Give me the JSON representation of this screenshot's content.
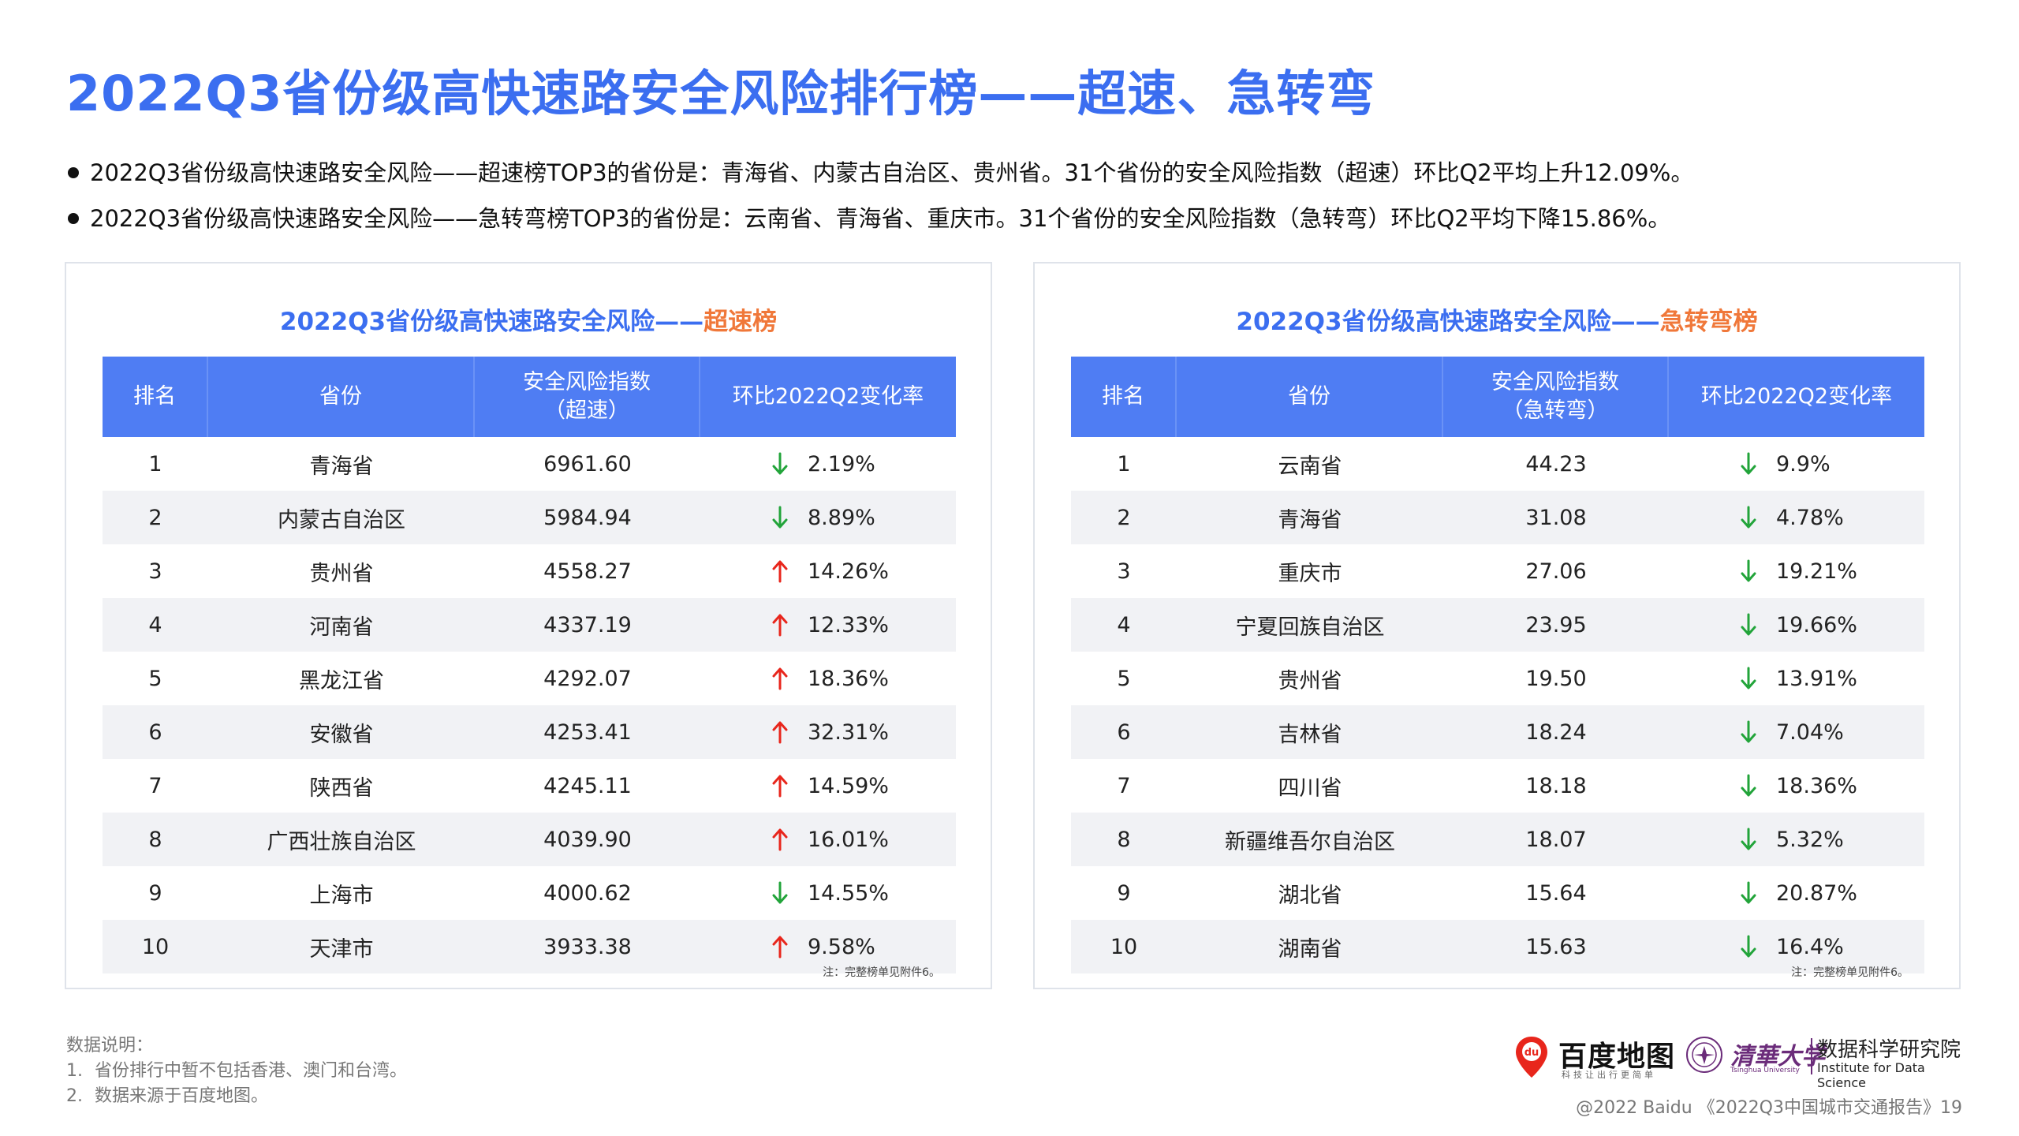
{
  "title": "2022Q3省份级高快速路安全风险排行榜——超速、急转弯",
  "bullets": [
    "2022Q3省份级高快速路安全风险——超速榜TOP3的省份是：青海省、内蒙古自治区、贵州省。31个省份的安全风险指数（超速）环比Q2平均上升12.09%。",
    "2022Q3省份级高快速路安全风险——急转弯榜TOP3的省份是：云南省、青海省、重庆市。31个省份的安全风险指数（急转弯）环比Q2平均下降15.86%。"
  ],
  "colors": {
    "accent": "#3b6ef0",
    "header": "#4f7df3",
    "highlight": "#f0783a",
    "up": "#e8261c",
    "down": "#22a43a"
  },
  "panels": [
    {
      "title_prefix": "2022Q3省份级高快速路安全风险——",
      "title_highlight": "超速榜",
      "headers": [
        "排名",
        "省份",
        "安全风险指数\n（超速）",
        "环比2022Q2变化率"
      ],
      "rows": [
        {
          "rank": "1",
          "province": "青海省",
          "index": "6961.60",
          "dir": "down",
          "change": "2.19%"
        },
        {
          "rank": "2",
          "province": "内蒙古自治区",
          "index": "5984.94",
          "dir": "down",
          "change": "8.89%"
        },
        {
          "rank": "3",
          "province": "贵州省",
          "index": "4558.27",
          "dir": "up",
          "change": "14.26%"
        },
        {
          "rank": "4",
          "province": "河南省",
          "index": "4337.19",
          "dir": "up",
          "change": "12.33%"
        },
        {
          "rank": "5",
          "province": "黑龙江省",
          "index": "4292.07",
          "dir": "up",
          "change": "18.36%"
        },
        {
          "rank": "6",
          "province": "安徽省",
          "index": "4253.41",
          "dir": "up",
          "change": "32.31%"
        },
        {
          "rank": "7",
          "province": "陕西省",
          "index": "4245.11",
          "dir": "up",
          "change": "14.59%"
        },
        {
          "rank": "8",
          "province": "广西壮族自治区",
          "index": "4039.90",
          "dir": "up",
          "change": "16.01%"
        },
        {
          "rank": "9",
          "province": "上海市",
          "index": "4000.62",
          "dir": "down",
          "change": "14.55%"
        },
        {
          "rank": "10",
          "province": "天津市",
          "index": "3933.38",
          "dir": "up",
          "change": "9.58%"
        }
      ],
      "note": "注：完整榜单见附件6。"
    },
    {
      "title_prefix": "2022Q3省份级高快速路安全风险——",
      "title_highlight": "急转弯榜",
      "headers": [
        "排名",
        "省份",
        "安全风险指数\n（急转弯）",
        "环比2022Q2变化率"
      ],
      "rows": [
        {
          "rank": "1",
          "province": "云南省",
          "index": "44.23",
          "dir": "down",
          "change": "9.9%"
        },
        {
          "rank": "2",
          "province": "青海省",
          "index": "31.08",
          "dir": "down",
          "change": "4.78%"
        },
        {
          "rank": "3",
          "province": "重庆市",
          "index": "27.06",
          "dir": "down",
          "change": "19.21%"
        },
        {
          "rank": "4",
          "province": "宁夏回族自治区",
          "index": "23.95",
          "dir": "down",
          "change": "19.66%"
        },
        {
          "rank": "5",
          "province": "贵州省",
          "index": "19.50",
          "dir": "down",
          "change": "13.91%"
        },
        {
          "rank": "6",
          "province": "吉林省",
          "index": "18.24",
          "dir": "down",
          "change": "7.04%"
        },
        {
          "rank": "7",
          "province": "四川省",
          "index": "18.18",
          "dir": "down",
          "change": "18.36%"
        },
        {
          "rank": "8",
          "province": "新疆维吾尔自治区",
          "index": "18.07",
          "dir": "down",
          "change": "5.32%"
        },
        {
          "rank": "9",
          "province": "湖北省",
          "index": "15.64",
          "dir": "down",
          "change": "20.87%"
        },
        {
          "rank": "10",
          "province": "湖南省",
          "index": "15.63",
          "dir": "down",
          "change": "16.4%"
        }
      ],
      "note": "注：完整榜单见附件6。"
    }
  ],
  "footnotes": {
    "heading": "数据说明：",
    "items": [
      {
        "num": "1.",
        "text": "省份排行中暂不包括香港、澳门和台湾。"
      },
      {
        "num": "2.",
        "text": "数据来源于百度地图。"
      }
    ]
  },
  "logos": {
    "baidu_name": "百度地图",
    "baidu_sub": "科技让出行更简单",
    "tsinghua_name": "清華大学",
    "tsinghua_en": "Tsinghua University",
    "ids_cn": "数据科学研究院",
    "ids_en": "Institute for Data Science"
  },
  "copyright": "@2022 Baidu 《2022Q3中国城市交通报告》19"
}
